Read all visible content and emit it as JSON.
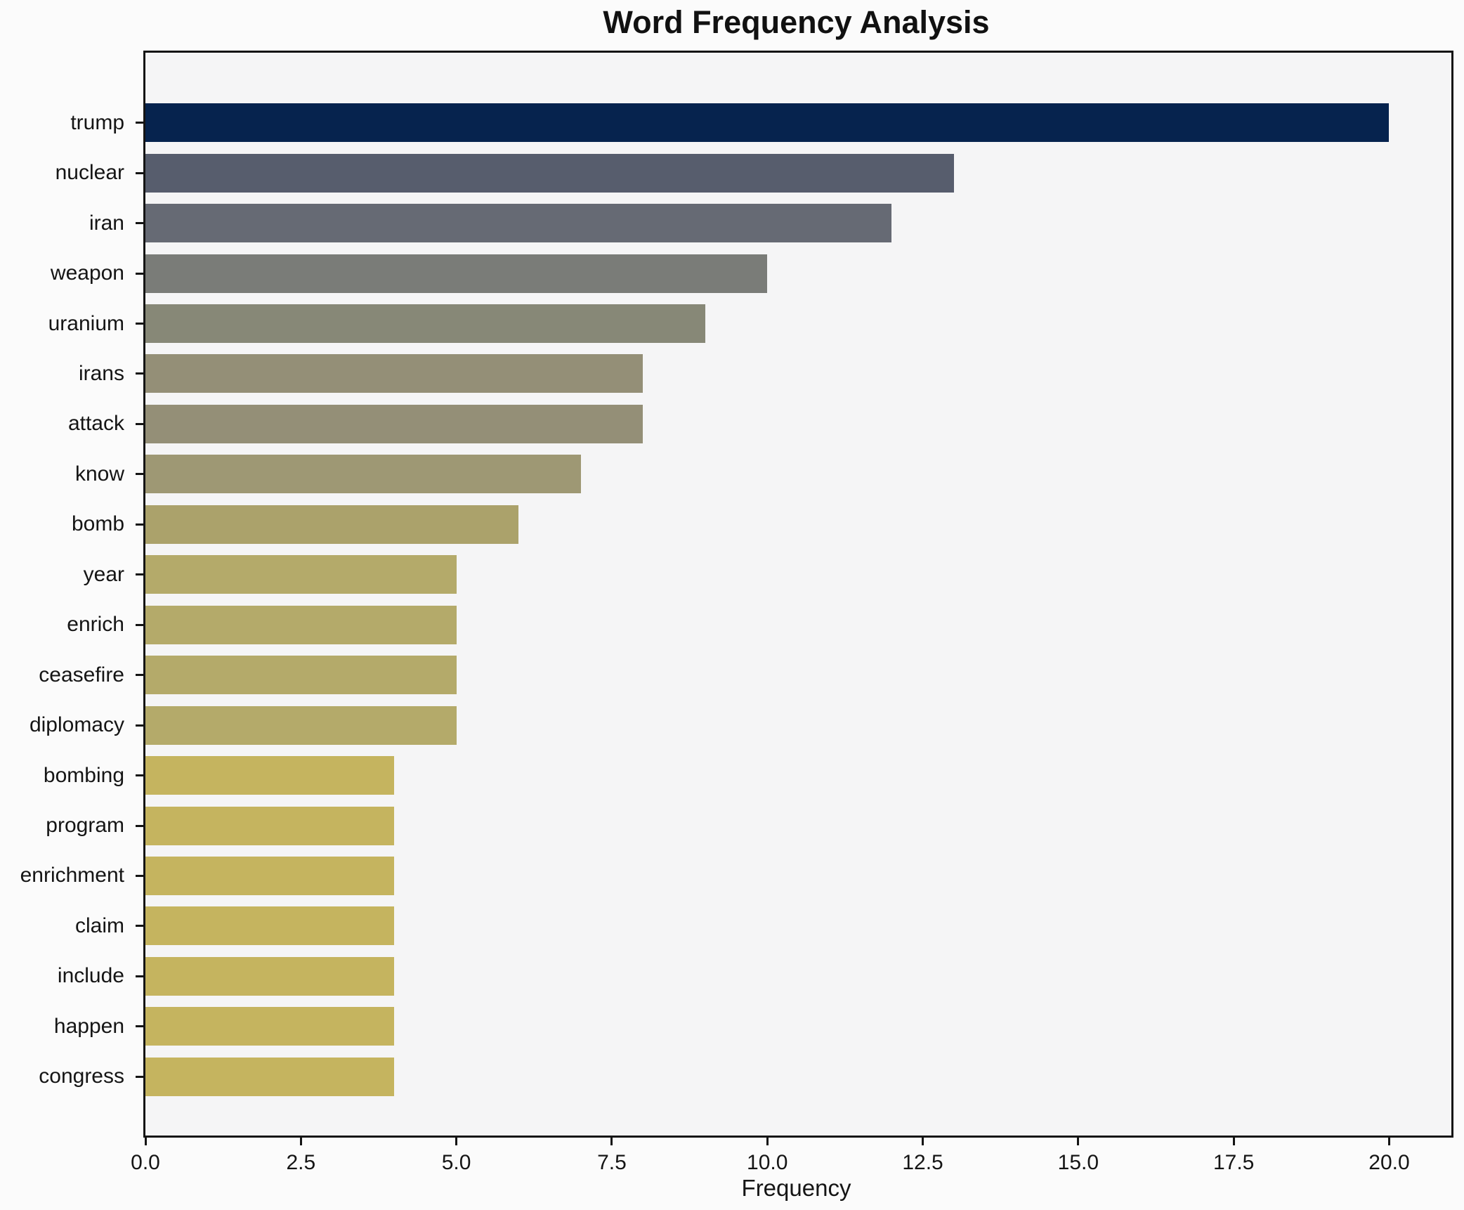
{
  "chart_data": {
    "type": "bar",
    "orientation": "horizontal",
    "title": "Word Frequency Analysis",
    "xlabel": "Frequency",
    "ylabel": "",
    "categories": [
      "trump",
      "nuclear",
      "iran",
      "weapon",
      "uranium",
      "irans",
      "attack",
      "know",
      "bomb",
      "year",
      "enrich",
      "ceasefire",
      "diplomacy",
      "bombing",
      "program",
      "enrichment",
      "claim",
      "include",
      "happen",
      "congress"
    ],
    "values": [
      20,
      13,
      12,
      10,
      9,
      8,
      8,
      7,
      6,
      5,
      5,
      5,
      5,
      4,
      4,
      4,
      4,
      4,
      4,
      4
    ],
    "bar_colors": [
      "#06234E",
      "#575D6D",
      "#666A74",
      "#7A7C78",
      "#878877",
      "#948F77",
      "#948F77",
      "#9E9874",
      "#ABA26B",
      "#B4AA6A",
      "#B4AA6A",
      "#B4AA6A",
      "#B4AA6A",
      "#C5B45F",
      "#C5B45F",
      "#C5B45F",
      "#C5B45F",
      "#C5B45F",
      "#C5B45F",
      "#C5B45F"
    ],
    "xlim": [
      0,
      21
    ],
    "x_ticks": [
      0,
      2.5,
      5,
      7.5,
      10,
      12.5,
      15,
      17.5,
      20
    ],
    "x_tick_labels": [
      "0.0",
      "2.5",
      "5.0",
      "7.5",
      "10.0",
      "12.5",
      "15.0",
      "17.5",
      "20.0"
    ],
    "grid": false,
    "legend": "none",
    "plot_background": "#f5f5f6",
    "figure_background": "#fbfbfb",
    "colormap": "cividis"
  }
}
